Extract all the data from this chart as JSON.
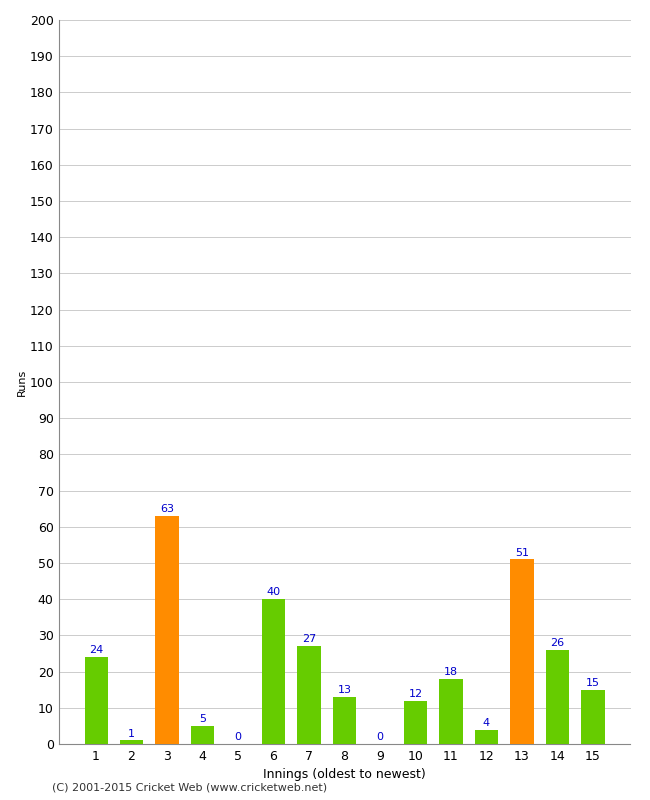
{
  "title": "",
  "xlabel": "Innings (oldest to newest)",
  "ylabel": "Runs",
  "categories": [
    1,
    2,
    3,
    4,
    5,
    6,
    7,
    8,
    9,
    10,
    11,
    12,
    13,
    14,
    15
  ],
  "values": [
    24,
    1,
    63,
    5,
    0,
    40,
    27,
    13,
    0,
    12,
    18,
    4,
    51,
    26,
    15
  ],
  "bar_colors": [
    "#66cc00",
    "#66cc00",
    "#ff8c00",
    "#66cc00",
    "#66cc00",
    "#66cc00",
    "#66cc00",
    "#66cc00",
    "#66cc00",
    "#66cc00",
    "#66cc00",
    "#66cc00",
    "#ff8c00",
    "#66cc00",
    "#66cc00"
  ],
  "ylim": [
    0,
    200
  ],
  "yticks": [
    0,
    10,
    20,
    30,
    40,
    50,
    60,
    70,
    80,
    90,
    100,
    110,
    120,
    130,
    140,
    150,
    160,
    170,
    180,
    190,
    200
  ],
  "label_color": "#0000cc",
  "background_color": "#ffffff",
  "grid_color": "#cccccc",
  "footer_text": "(C) 2001-2015 Cricket Web (www.cricketweb.net)",
  "axis_fontsize": 9,
  "label_fontsize": 8,
  "footer_fontsize": 8,
  "ylabel_fontsize": 8
}
